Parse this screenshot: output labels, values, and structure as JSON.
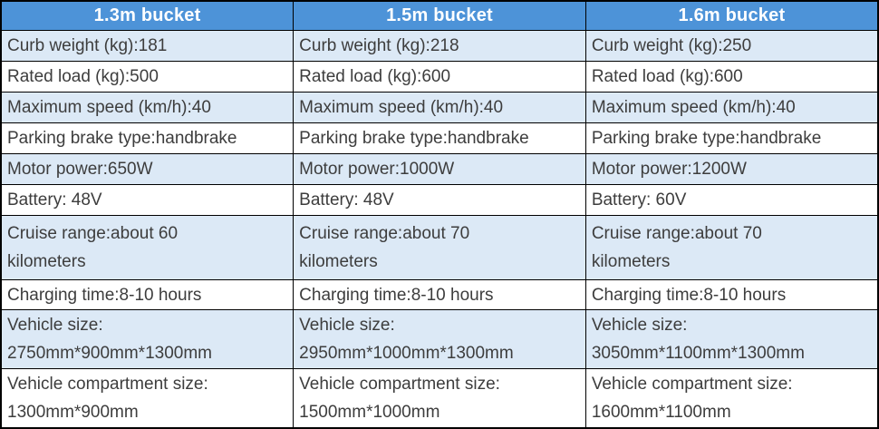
{
  "colors": {
    "header_bg": "#4D93D8",
    "header_text": "#FFFFFF",
    "row_alt_bg": "#DCE9F6",
    "row_bg": "#FFFFFF",
    "cell_text": "#3D3D3D",
    "grid": "#000000"
  },
  "table": {
    "columns": [
      {
        "header": "1.3m bucket",
        "cells": [
          [
            "Curb weight (kg):181"
          ],
          [
            "Rated load (kg):500"
          ],
          [
            "Maximum speed (km/h):40"
          ],
          [
            "Parking brake type:handbrake"
          ],
          [
            "Motor power:650W"
          ],
          [
            "Battery: 48V"
          ],
          [
            "Cruise range:about 60",
            "kilometers"
          ],
          [
            "Charging time:8-10 hours"
          ],
          [
            "Vehicle size:",
            "2750mm*900mm*1300mm"
          ],
          [
            "Vehicle compartment size:",
            "1300mm*900mm"
          ]
        ]
      },
      {
        "header": "1.5m bucket",
        "cells": [
          [
            "Curb weight (kg):218"
          ],
          [
            "Rated load (kg):600"
          ],
          [
            "Maximum speed (km/h):40"
          ],
          [
            "Parking brake type:handbrake"
          ],
          [
            "Motor power:1000W"
          ],
          [
            "Battery: 48V"
          ],
          [
            "Cruise range:about 70",
            "kilometers"
          ],
          [
            "Charging time:8-10 hours"
          ],
          [
            "Vehicle size:",
            "2950mm*1000mm*1300mm"
          ],
          [
            "Vehicle compartment size:",
            "1500mm*1000mm"
          ]
        ]
      },
      {
        "header": "1.6m bucket",
        "cells": [
          [
            "Curb weight (kg):250"
          ],
          [
            "Rated load (kg):600"
          ],
          [
            "Maximum speed (km/h):40"
          ],
          [
            "Parking brake type:handbrake"
          ],
          [
            "Motor power:1200W"
          ],
          [
            "Battery: 60V"
          ],
          [
            "Cruise range:about 70",
            "kilometers"
          ],
          [
            "Charging time:8-10 hours"
          ],
          [
            "Vehicle size:",
            "3050mm*1100mm*1300mm"
          ],
          [
            "Vehicle compartment size:",
            "1600mm*1100mm"
          ]
        ]
      }
    ]
  },
  "chart_data": {
    "type": "table",
    "columns": [
      "1.3m bucket",
      "1.5m bucket",
      "1.6m bucket"
    ],
    "row_labels": [
      "Curb weight (kg)",
      "Rated load (kg)",
      "Maximum speed (km/h)",
      "Parking brake type",
      "Motor power",
      "Battery",
      "Cruise range",
      "Charging time",
      "Vehicle size",
      "Vehicle compartment size"
    ],
    "values": [
      [
        "181",
        "218",
        "250"
      ],
      [
        "500",
        "600",
        "600"
      ],
      [
        "40",
        "40",
        "40"
      ],
      [
        "handbrake",
        "handbrake",
        "handbrake"
      ],
      [
        "650W",
        "1000W",
        "1200W"
      ],
      [
        "48V",
        "48V",
        "60V"
      ],
      [
        "about 60 kilometers",
        "about 70 kilometers",
        "about 70 kilometers"
      ],
      [
        "8-10 hours",
        "8-10 hours",
        "8-10 hours"
      ],
      [
        "2750mm*900mm*1300mm",
        "2950mm*1000mm*1300mm",
        "3050mm*1100mm*1300mm"
      ],
      [
        "1300mm*900mm",
        "1500mm*1000mm",
        "1600mm*1100mm"
      ]
    ]
  }
}
